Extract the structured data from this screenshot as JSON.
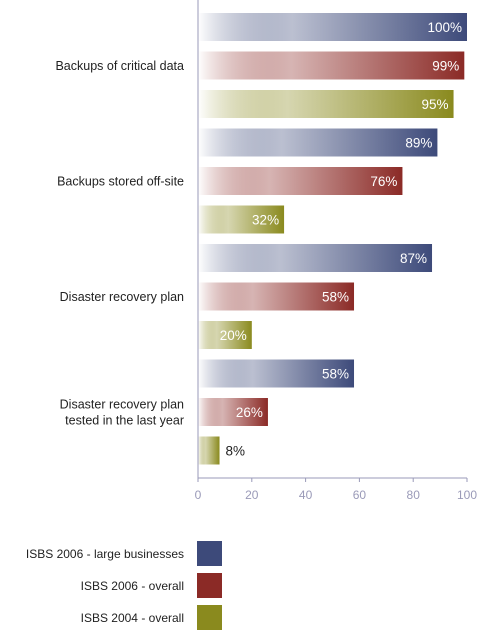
{
  "chart_data": {
    "type": "bar",
    "orientation": "horizontal",
    "categories": [
      "Backups of critical data",
      "Backups stored off-site",
      "Disaster recovery plan",
      "Disaster recovery plan\ntested in the last year"
    ],
    "series": [
      {
        "name": "ISBS 2006 - large businesses",
        "color": "#3d4a7a",
        "values": [
          100,
          89,
          87,
          58
        ]
      },
      {
        "name": "ISBS 2006 - overall",
        "color": "#8b2a26",
        "values": [
          99,
          76,
          58,
          26
        ]
      },
      {
        "name": "ISBS 2004 - overall",
        "color": "#8a8a1e",
        "values": [
          95,
          32,
          20,
          8
        ]
      }
    ],
    "value_labels": [
      [
        "100%",
        "99%",
        "95%"
      ],
      [
        "89%",
        "76%",
        "32%"
      ],
      [
        "87%",
        "58%",
        "20%"
      ],
      [
        "58%",
        "26%",
        "8%"
      ]
    ],
    "xlim": [
      0,
      100
    ],
    "xticks": [
      "0",
      "20",
      "40",
      "60",
      "80",
      "100"
    ],
    "grid": false,
    "legend_position": "bottom-left"
  }
}
